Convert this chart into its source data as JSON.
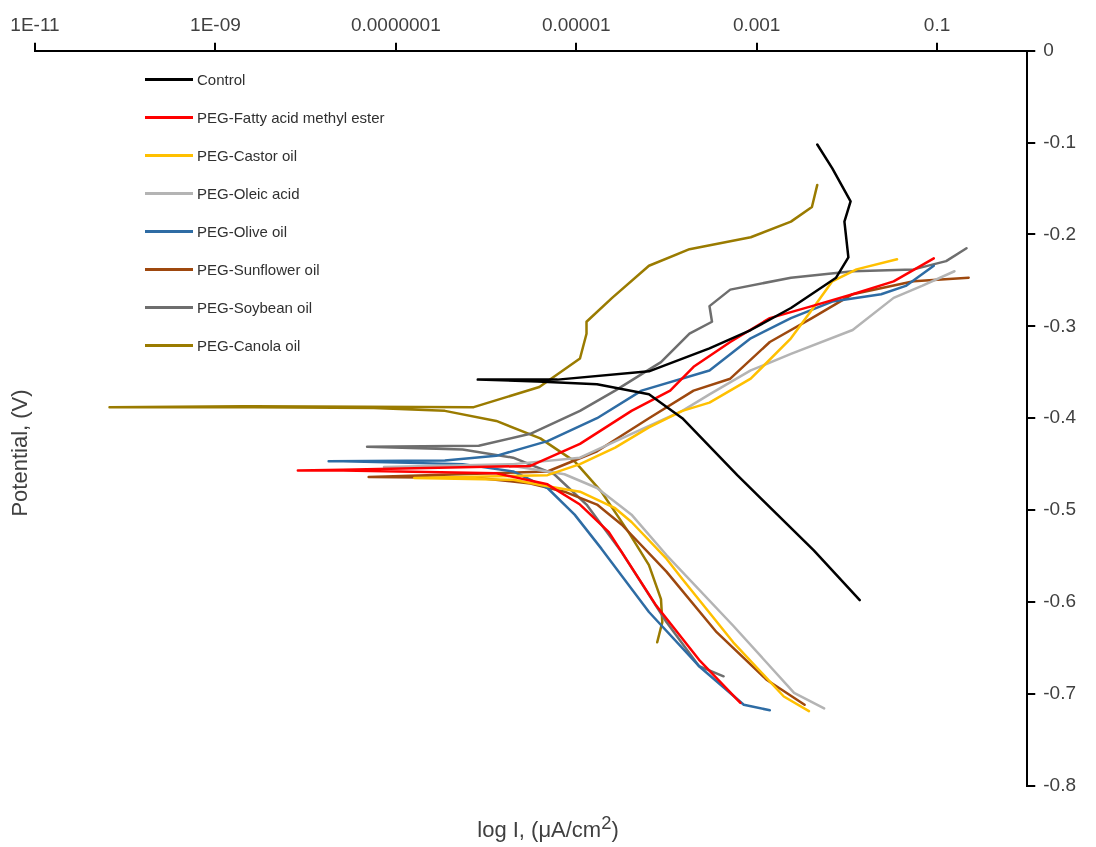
{
  "chart_data": {
    "type": "line",
    "xlabel": "log I, (μA/cm$^{2}$)",
    "ylabel": "Potential, (V)",
    "log": "x",
    "grid": false,
    "legend": "top left",
    "marker": "none",
    "line_style": "solid",
    "xlim": [
      1e-11,
      1
    ],
    "xticks": [
      {
        "value": 1e-11,
        "label": "1E-11"
      },
      {
        "value": 1e-09,
        "label": "1E-09"
      },
      {
        "value": 1e-07,
        "label": "0.0000001"
      },
      {
        "value": 1e-05,
        "label": "0.00001"
      },
      0.001,
      0.1
    ],
    "ylim": [
      -0.8,
      0
    ],
    "yticks": [
      0,
      -0.1,
      -0.2,
      -0.3,
      -0.4,
      -0.5,
      -0.6,
      -0.7,
      -0.8
    ],
    "series": [
      {
        "name": "Control",
        "color": "#000000",
        "x": [
          0.0139,
          0.0043,
          0.00061,
          0.00015,
          6.4e-05,
          1.7e-05,
          3.7e-06,
          8.1e-07,
          6.2e-06,
          6.4e-05,
          0.0003,
          0.00086,
          0.0024,
          0.0076,
          0.0104,
          0.0094,
          0.011,
          0.0069,
          0.0047
        ],
        "values": [
          -0.598,
          -0.544,
          -0.462,
          -0.4,
          -0.374,
          -0.363,
          -0.36,
          -0.358,
          -0.358,
          -0.349,
          -0.324,
          -0.304,
          -0.28,
          -0.247,
          -0.225,
          -0.186,
          -0.164,
          -0.128,
          -0.102
        ]
      },
      {
        "name": "PEG-Fatty acid methyl ester",
        "color": "#ff0000",
        "x": [
          0.00066,
          0.00023,
          7.7e-05,
          2.3e-05,
          1.1e-05,
          4.8e-06,
          1.3e-06,
          2.6e-08,
          8.2e-09,
          2.6e-08,
          3.1e-06,
          1.1e-05,
          4.1e-05,
          0.00011,
          0.0002,
          0.00051,
          0.0014,
          0.0041,
          0.0116,
          0.033,
          0.092
        ],
        "values": [
          -0.71,
          -0.663,
          -0.604,
          -0.524,
          -0.494,
          -0.472,
          -0.46,
          -0.457,
          -0.457,
          -0.456,
          -0.452,
          -0.428,
          -0.392,
          -0.37,
          -0.344,
          -0.317,
          -0.291,
          -0.278,
          -0.265,
          -0.251,
          -0.226
        ]
      },
      {
        "name": "PEG-Castor oil",
        "color": "#ffc000",
        "x": [
          0.0038,
          0.002,
          0.00055,
          0.00015,
          0.0001,
          4.1e-05,
          2.7e-05,
          1.1e-05,
          4.8e-06,
          2e-06,
          1.6e-07,
          4.8e-06,
          1.1e-05,
          2.7e-05,
          6.4e-05,
          0.00015,
          0.0003,
          0.00086,
          0.0024,
          0.0041,
          0.0069,
          0.0128,
          0.036
        ],
        "values": [
          -0.719,
          -0.703,
          -0.644,
          -0.575,
          -0.553,
          -0.513,
          -0.498,
          -0.48,
          -0.474,
          -0.467,
          -0.465,
          -0.462,
          -0.45,
          -0.432,
          -0.41,
          -0.392,
          -0.383,
          -0.357,
          -0.313,
          -0.282,
          -0.251,
          -0.238,
          -0.227
        ]
      },
      {
        "name": "PEG-Oleic acid",
        "color": "#b4b4b4",
        "x": [
          0.0056,
          0.0026,
          0.00055,
          0.0001,
          4.1e-05,
          1.7e-05,
          7.4e-06,
          2e-06,
          7.4e-08,
          2e-06,
          1.1e-05,
          4.1e-05,
          0.00015,
          0.0003,
          0.00086,
          0.0024,
          0.0116,
          0.033,
          0.068,
          0.156
        ],
        "values": [
          -0.716,
          -0.699,
          -0.626,
          -0.549,
          -0.505,
          -0.476,
          -0.461,
          -0.452,
          -0.453,
          -0.45,
          -0.443,
          -0.417,
          -0.392,
          -0.374,
          -0.348,
          -0.33,
          -0.304,
          -0.269,
          -0.256,
          -0.24
        ]
      },
      {
        "name": "PEG-Olive oil",
        "color": "#2e6ca4",
        "x": [
          0.0014,
          0.00072,
          0.00023,
          6.4e-05,
          1.9e-05,
          9.6e-06,
          4.8e-06,
          2e-06,
          5.5e-07,
          2.6e-08,
          1.8e-08,
          3.5e-07,
          1.3e-06,
          4.8e-06,
          1.7e-05,
          5.3e-05,
          0.0003,
          0.00086,
          0.0024,
          0.0069,
          0.024,
          0.045,
          0.092
        ],
        "values": [
          -0.718,
          -0.712,
          -0.67,
          -0.611,
          -0.542,
          -0.505,
          -0.476,
          -0.458,
          -0.45,
          -0.447,
          -0.447,
          -0.446,
          -0.441,
          -0.425,
          -0.4,
          -0.37,
          -0.348,
          -0.313,
          -0.291,
          -0.273,
          -0.265,
          -0.256,
          -0.234
        ]
      },
      {
        "name": "PEG-Sunflower oil",
        "color": "#9e480e",
        "x": [
          0.0034,
          0.0013,
          0.00036,
          0.0001,
          3.2e-05,
          1.7e-05,
          7.4e-06,
          3.1e-06,
          8.3e-07,
          5e-08,
          4.8e-06,
          1.7e-05,
          6.4e-05,
          0.0002,
          0.00051,
          0.0014,
          0.0041,
          0.0116,
          0.055,
          0.224
        ],
        "values": [
          -0.712,
          -0.685,
          -0.633,
          -0.567,
          -0.516,
          -0.494,
          -0.48,
          -0.471,
          -0.465,
          -0.464,
          -0.458,
          -0.436,
          -0.4,
          -0.37,
          -0.357,
          -0.317,
          -0.291,
          -0.265,
          -0.251,
          -0.247
        ]
      },
      {
        "name": "PEG-Soybean oil",
        "color": "#6e6e6e",
        "x": [
          0.00043,
          0.00023,
          0.0001,
          3.2e-05,
          1.3e-05,
          5.7e-06,
          2e-06,
          5.5e-07,
          4.8e-08,
          8.3e-07,
          3.1e-06,
          1.1e-05,
          2.7e-05,
          8.7e-05,
          0.00018,
          0.00032,
          0.0003,
          0.00051,
          0.0024,
          0.0116,
          0.055,
          0.126,
          0.212
        ],
        "values": [
          -0.681,
          -0.67,
          -0.622,
          -0.546,
          -0.494,
          -0.461,
          -0.443,
          -0.434,
          -0.431,
          -0.43,
          -0.417,
          -0.392,
          -0.37,
          -0.339,
          -0.308,
          -0.295,
          -0.278,
          -0.26,
          -0.247,
          -0.24,
          -0.238,
          -0.229,
          -0.215
        ]
      },
      {
        "name": "PEG-Canola oil",
        "color": "#9a7b00",
        "x": [
          7.9e-05,
          9e-05,
          8.7e-05,
          6.4e-05,
          3.8e-05,
          1.9e-05,
          9.6e-06,
          4e-06,
          1.3e-06,
          3.5e-07,
          2.1e-07,
          5.7e-08,
          2e-09,
          6.7e-11,
          2e-09,
          7.3e-07,
          3.9e-06,
          1.1e-05,
          1.3e-05,
          1.3e-05,
          2.5e-05,
          6.4e-05,
          0.00018,
          0.00086,
          0.0024,
          0.0041,
          0.0047
        ],
        "values": [
          -0.644,
          -0.622,
          -0.597,
          -0.56,
          -0.524,
          -0.48,
          -0.447,
          -0.422,
          -0.403,
          -0.392,
          -0.391,
          -0.389,
          -0.388,
          -0.388,
          -0.387,
          -0.388,
          -0.366,
          -0.335,
          -0.308,
          -0.295,
          -0.269,
          -0.234,
          -0.216,
          -0.203,
          -0.186,
          -0.17,
          -0.146
        ]
      }
    ]
  }
}
